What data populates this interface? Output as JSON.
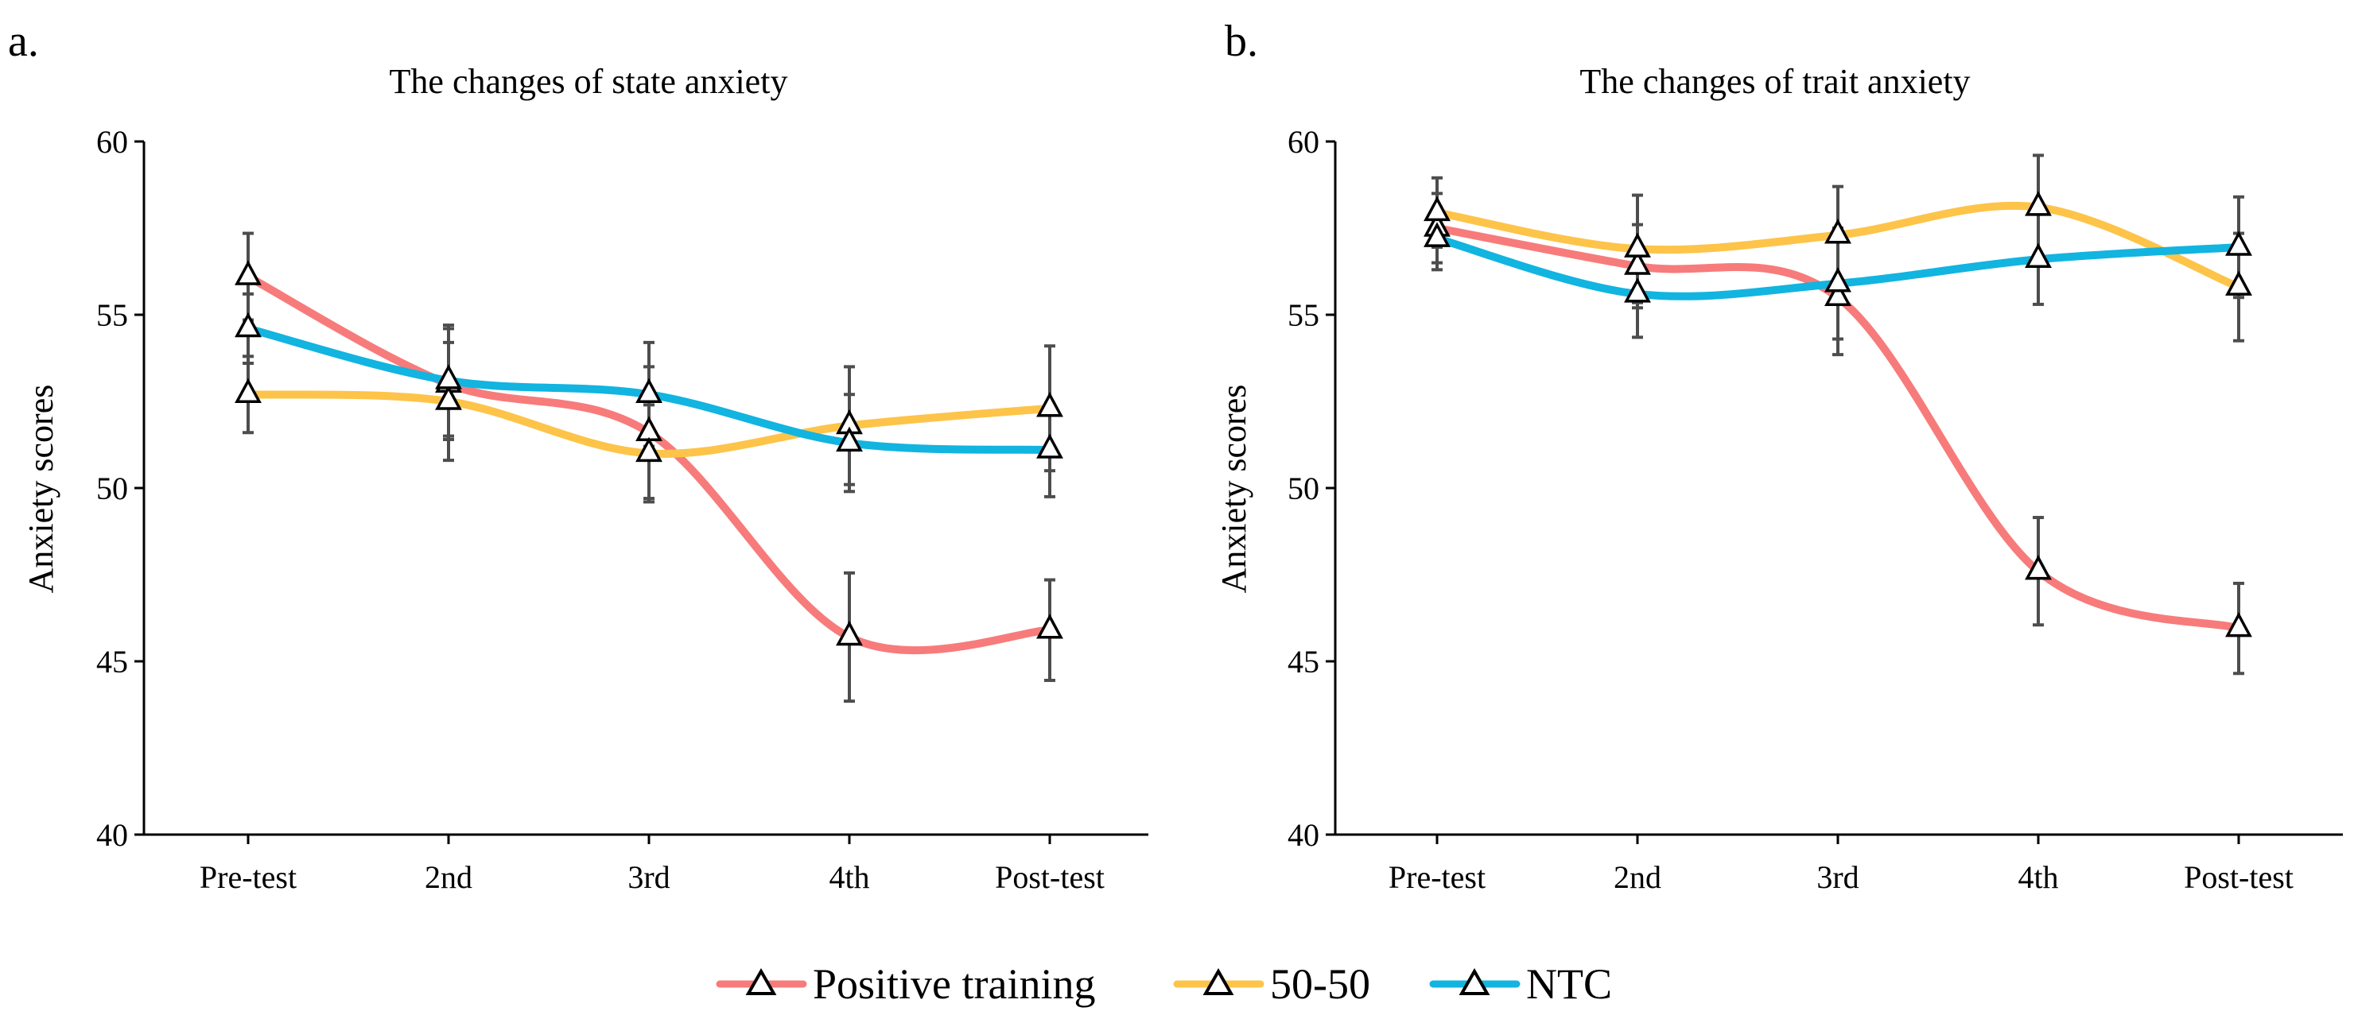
{
  "chart_data": [
    {
      "type": "line",
      "panel": "a.",
      "title": "The changes of state anxiety",
      "xlabel": "",
      "ylabel": "Anxiety scores",
      "categories": [
        "Pre-test",
        "2nd",
        "3rd",
        "4th",
        "Post-test"
      ],
      "ylim": [
        40,
        60
      ],
      "yticks": [
        40,
        45,
        50,
        55,
        60
      ],
      "series": [
        {
          "name": "Positive training",
          "values": [
            56.1,
            53.0,
            51.6,
            45.7,
            45.9
          ],
          "errors": [
            1.25,
            1.6,
            1.9,
            1.85,
            1.45
          ]
        },
        {
          "name": "50-50",
          "values": [
            52.7,
            52.5,
            51.0,
            51.8,
            52.3
          ],
          "errors": [
            1.1,
            1.7,
            1.4,
            1.7,
            1.8
          ]
        },
        {
          "name": "NTC",
          "values": [
            54.6,
            53.1,
            52.7,
            51.3,
            51.1
          ],
          "errors": [
            1.0,
            1.6,
            1.5,
            1.4,
            1.35
          ]
        }
      ]
    },
    {
      "type": "line",
      "panel": "b.",
      "title": "The changes of trait anxiety",
      "xlabel": "",
      "ylabel": "Anxiety scores",
      "categories": [
        "Pre-test",
        "2nd",
        "3rd",
        "4th",
        "Post-test"
      ],
      "ylim": [
        40,
        60
      ],
      "yticks": [
        40,
        45,
        50,
        55,
        60
      ],
      "series": [
        {
          "name": "Positive training",
          "values": [
            57.5,
            56.4,
            55.5,
            47.6,
            45.95
          ],
          "errors": [
            1.0,
            1.2,
            1.65,
            1.55,
            1.3
          ]
        },
        {
          "name": "50-50",
          "values": [
            57.95,
            56.9,
            57.3,
            58.1,
            55.8
          ],
          "errors": [
            1.0,
            1.55,
            1.4,
            1.5,
            1.55
          ]
        },
        {
          "name": "NTC",
          "values": [
            57.2,
            55.6,
            55.9,
            56.6,
            56.95
          ],
          "errors": [
            0.9,
            1.25,
            1.6,
            1.3,
            1.45
          ]
        }
      ]
    }
  ],
  "legend": {
    "items": [
      {
        "name": "Positive training",
        "color": "#f77b7b"
      },
      {
        "name": "50-50",
        "color": "#fdc449"
      },
      {
        "name": "NTC",
        "color": "#12b4e0"
      }
    ]
  },
  "colors": {
    "Positive training": "#f77b7b",
    "50-50": "#fdc449",
    "NTC": "#12b4e0",
    "errorbar": "#4d4d4d",
    "axis": "#000000"
  }
}
